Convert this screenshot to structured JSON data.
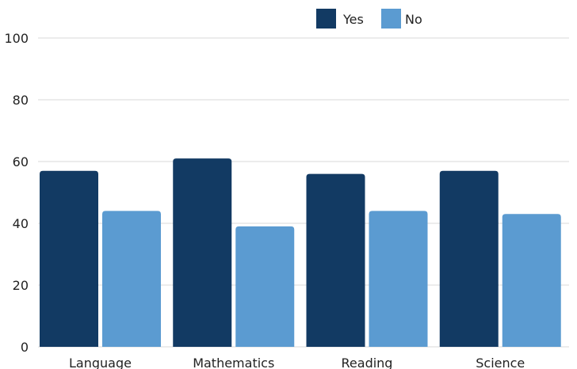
{
  "chart_data": {
    "type": "bar",
    "categories": [
      "Language",
      "Mathematics",
      "Reading",
      "Science"
    ],
    "series": [
      {
        "name": "Yes",
        "values": [
          57,
          61,
          56,
          57
        ],
        "color": "#123a63"
      },
      {
        "name": "No",
        "values": [
          44,
          39,
          44,
          43
        ],
        "color": "#5b9bd1"
      }
    ],
    "ylim": [
      0,
      100
    ],
    "yticks": [
      0,
      20,
      40,
      60,
      80,
      100
    ],
    "grid": true,
    "legend_position": "top-center",
    "gridline_color": "#d9d9d9"
  }
}
